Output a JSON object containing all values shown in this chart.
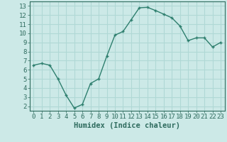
{
  "x": [
    0,
    1,
    2,
    3,
    4,
    5,
    6,
    7,
    8,
    9,
    10,
    11,
    12,
    13,
    14,
    15,
    16,
    17,
    18,
    19,
    20,
    21,
    22,
    23
  ],
  "y": [
    6.5,
    6.7,
    6.5,
    5.0,
    3.2,
    1.8,
    2.2,
    4.5,
    5.0,
    7.5,
    9.8,
    10.2,
    11.5,
    12.8,
    12.85,
    12.5,
    12.1,
    11.7,
    10.8,
    9.2,
    9.5,
    9.5,
    8.5,
    9.0
  ],
  "line_color": "#2e7f6e",
  "marker": "+",
  "bg_color": "#cce9e7",
  "grid_color": "#b0d8d5",
  "xlabel": "Humidex (Indice chaleur)",
  "ylim": [
    1.5,
    13.5
  ],
  "xlim": [
    -0.5,
    23.5
  ],
  "yticks": [
    2,
    3,
    4,
    5,
    6,
    7,
    8,
    9,
    10,
    11,
    12,
    13
  ],
  "xticks": [
    0,
    1,
    2,
    3,
    4,
    5,
    6,
    7,
    8,
    9,
    10,
    11,
    12,
    13,
    14,
    15,
    16,
    17,
    18,
    19,
    20,
    21,
    22,
    23
  ],
  "tick_color": "#2e6b5e",
  "label_color": "#2e6b5e",
  "font_size_xlabel": 7.5,
  "font_size_ticks": 6.5,
  "line_width": 1.0,
  "marker_size": 3.5,
  "marker_edge_width": 1.0
}
